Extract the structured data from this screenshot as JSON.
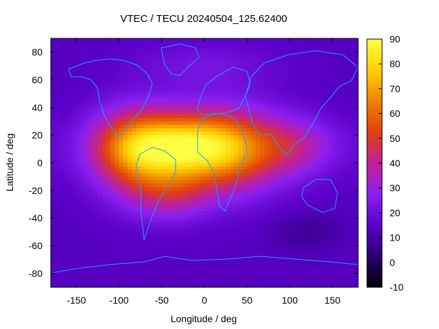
{
  "chart_data": {
    "type": "heatmap",
    "title": "VTEC / TECU 20240504_125.62400",
    "xlabel": "Longitude / deg",
    "ylabel": "Latitude / deg",
    "xlim": [
      -180,
      180
    ],
    "ylim": [
      -90,
      90
    ],
    "x_ticks": [
      -150,
      -100,
      -50,
      0,
      50,
      100,
      150
    ],
    "y_ticks": [
      80,
      60,
      40,
      20,
      0,
      -20,
      -40,
      -60,
      -80
    ],
    "colorbar": {
      "range": [
        -10,
        90
      ],
      "ticks": [
        90,
        80,
        70,
        60,
        50,
        40,
        30,
        20,
        10,
        0,
        -10
      ],
      "palette": [
        "#000000",
        "#2a0070",
        "#5a00c8",
        "#8a20f0",
        "#c0209a",
        "#e04010",
        "#f08000",
        "#ffd000",
        "#ffff40"
      ]
    },
    "field": {
      "background_tecu": 14,
      "description_blobs": [
        {
          "lon": -30,
          "lat": 12,
          "amp": 62,
          "sx": 55,
          "sy": 17
        },
        {
          "lon": -85,
          "lat": 8,
          "amp": 30,
          "sx": 35,
          "sy": 22
        },
        {
          "lon": 35,
          "lat": 8,
          "amp": 32,
          "sx": 42,
          "sy": 22
        },
        {
          "lon": 110,
          "lat": 12,
          "amp": 20,
          "sx": 35,
          "sy": 15
        },
        {
          "lon": -40,
          "lat": -22,
          "amp": 22,
          "sx": 35,
          "sy": 14
        },
        {
          "lon": 120,
          "lat": -50,
          "amp": -6,
          "sx": 30,
          "sy": 10
        },
        {
          "lon": 0,
          "lat": 70,
          "amp": 8,
          "sx": 60,
          "sy": 12
        }
      ]
    }
  }
}
